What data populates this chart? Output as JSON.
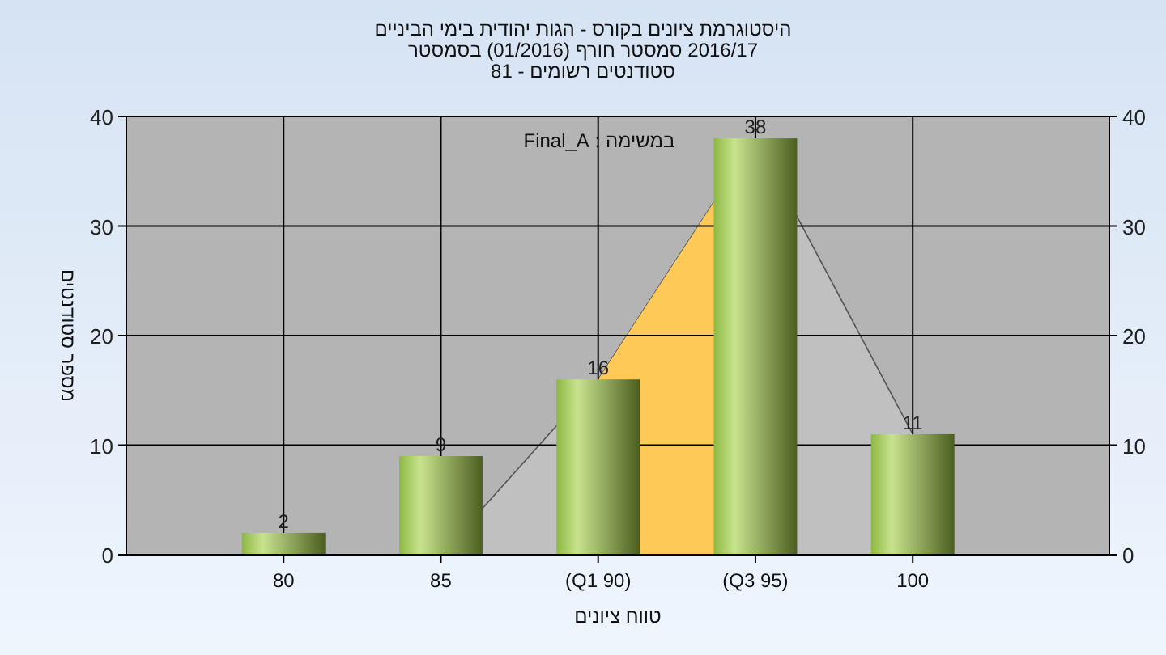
{
  "chart_data": {
    "type": "bar",
    "title": "היסטוגרמת ציונים בקורס - הגות יהודית בימי הביניים",
    "subtitle": "2016/17 סמסטר חורף (01/2016) בסמסטר",
    "annotations": [
      "סטודנטים רשומים - 81",
      "במשימה : Final_A"
    ],
    "xlabel": "טווח ציונים",
    "ylabel": "מספר סטודנטים",
    "categories": [
      "80",
      "85",
      "(Q1 90)",
      "(Q3 95)",
      "100"
    ],
    "series": [
      {
        "type": "area",
        "color": "#c0c0c0",
        "values": [
          0,
          0,
          16,
          38,
          11
        ]
      },
      {
        "type": "area",
        "color": "#ffc957",
        "values": [
          null,
          null,
          16,
          38,
          null
        ]
      },
      {
        "color": "#8db843",
        "values": [
          2,
          9,
          16,
          38,
          11
        ],
        "value_labels": [
          "2",
          "9",
          "16",
          "38",
          "11"
        ]
      }
    ],
    "ylim": [
      0,
      40
    ],
    "yticks": [
      0,
      10,
      20,
      30,
      40
    ],
    "y2lim": [
      0,
      40
    ],
    "y2ticks": [
      0,
      10,
      20,
      30,
      40
    ],
    "grid": true
  }
}
